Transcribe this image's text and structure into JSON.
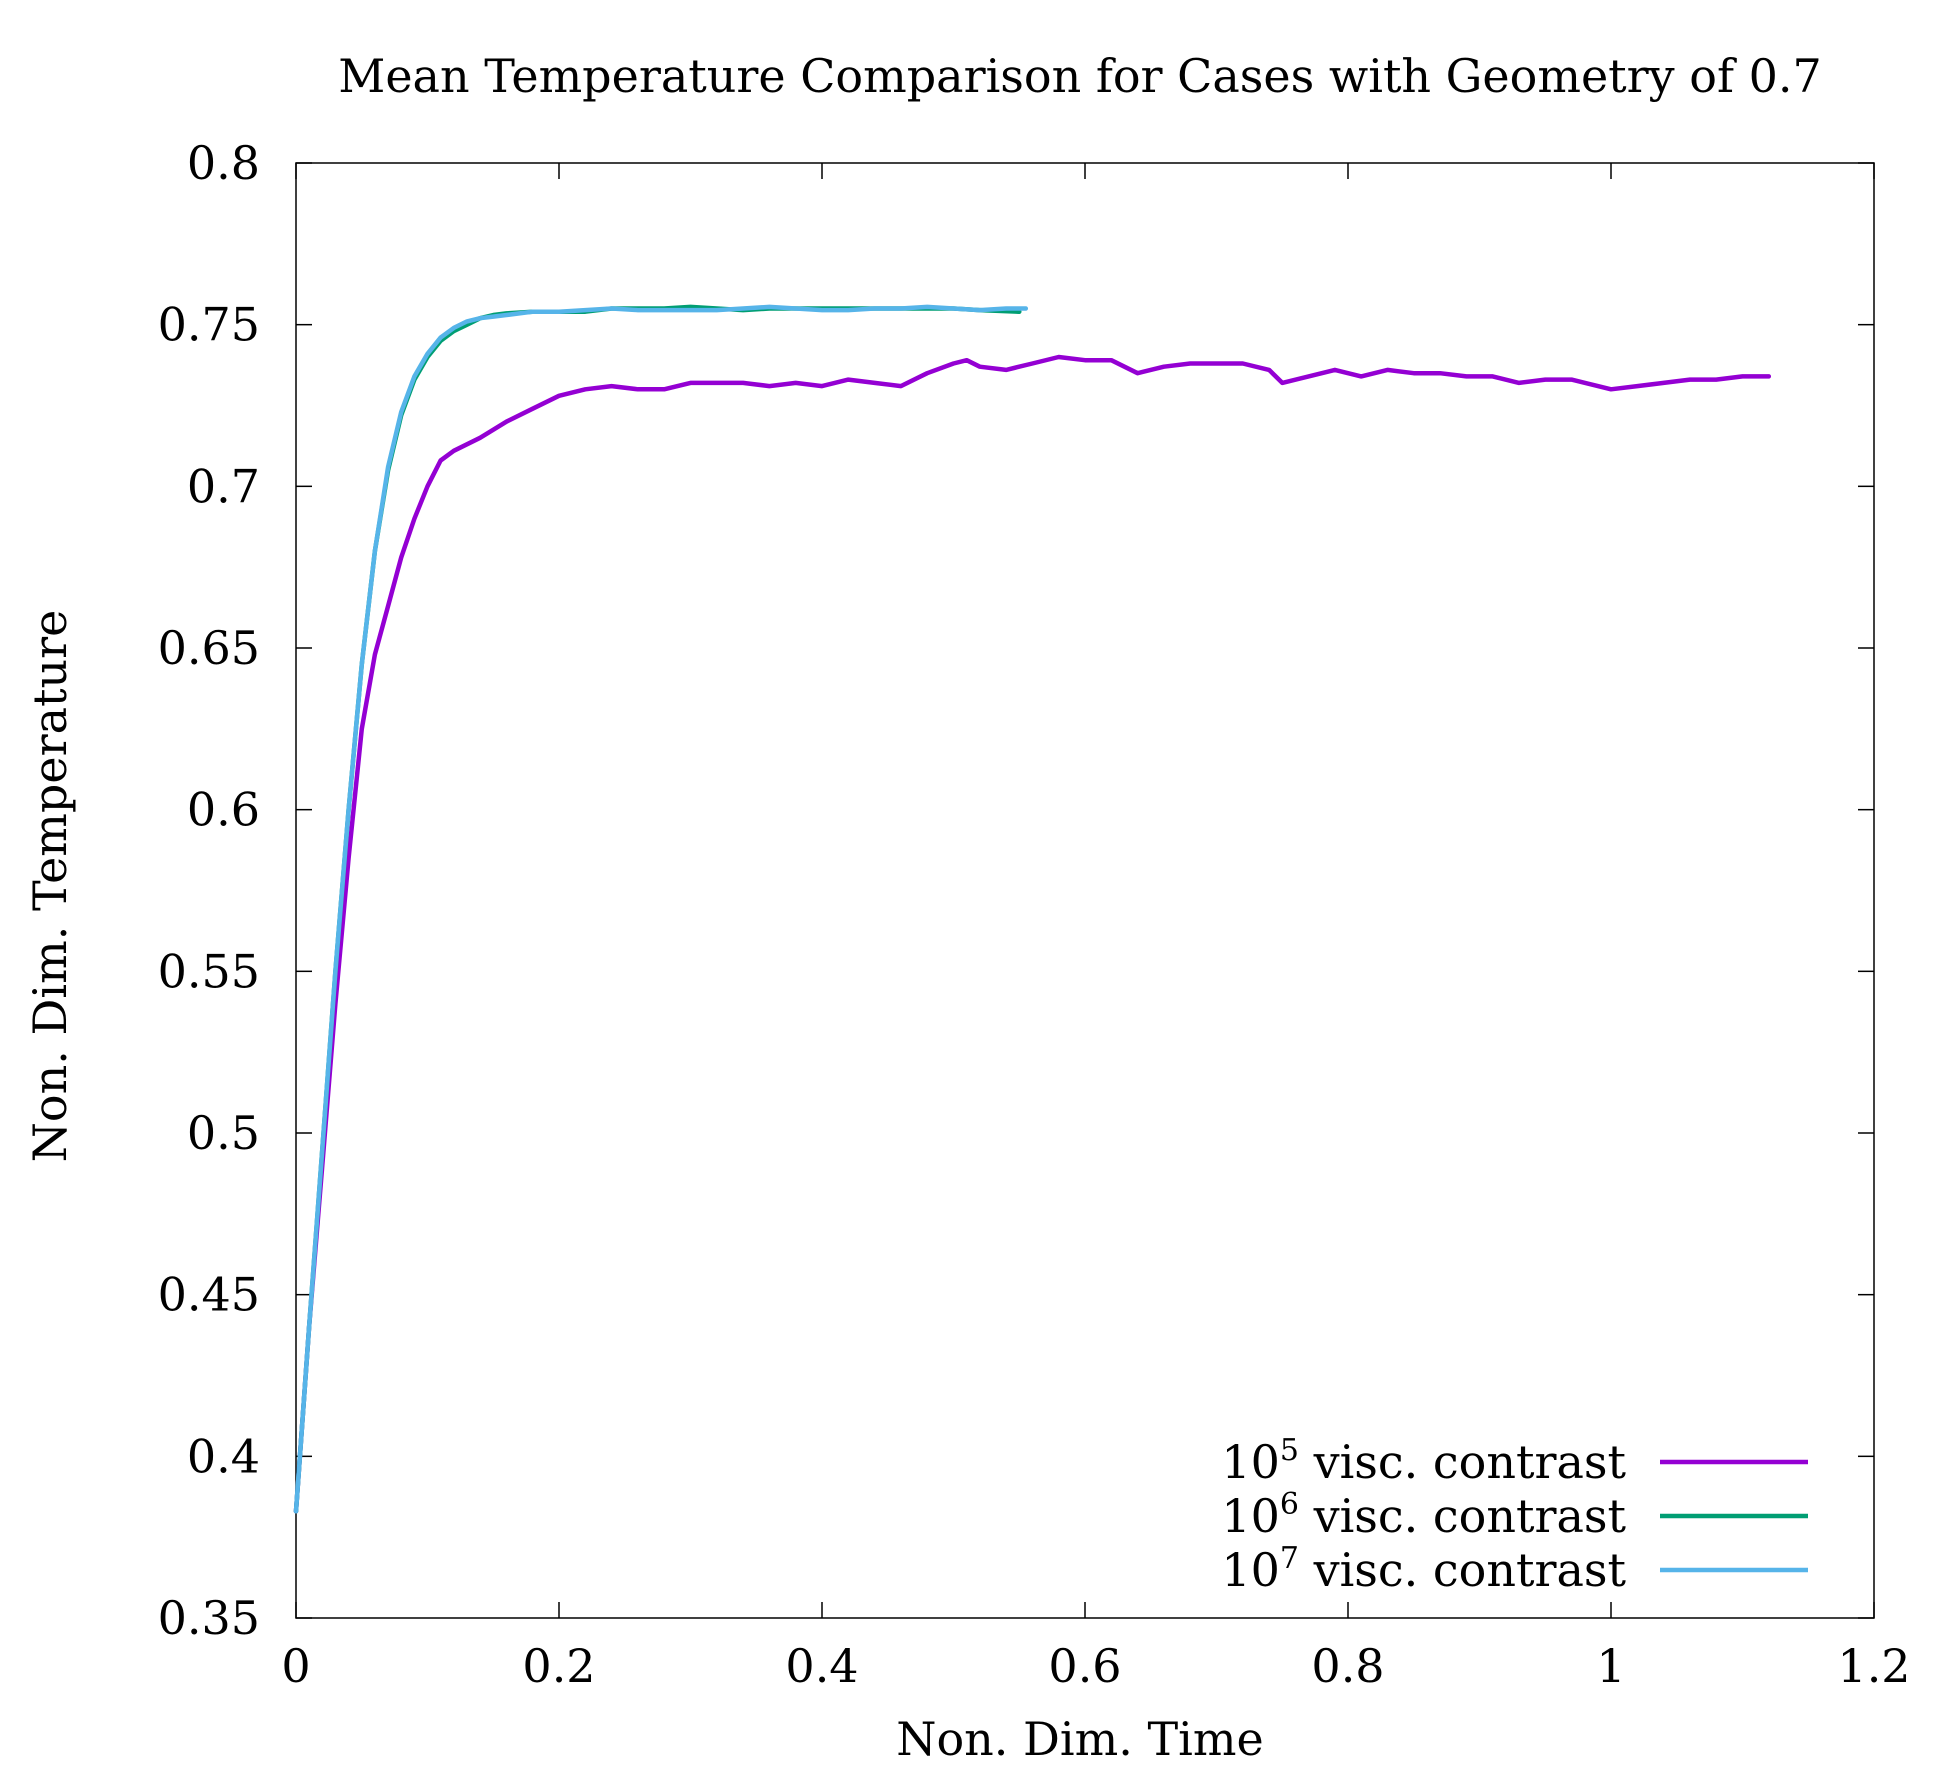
{
  "chart_data": {
    "type": "line",
    "title": "Mean Temperature Comparison for Cases with Geometry of 0.7",
    "xlabel": "Non. Dim. Time",
    "ylabel": "Non. Dim. Temperature",
    "xlim": [
      0,
      1.2
    ],
    "ylim": [
      0.35,
      0.8
    ],
    "xticks": [
      0,
      0.2,
      0.4,
      0.6,
      0.8,
      1,
      1.2
    ],
    "xtick_labels": [
      "0",
      "0.2",
      "0.4",
      "0.6",
      "0.8",
      "1",
      "1.2"
    ],
    "yticks": [
      0.35,
      0.4,
      0.45,
      0.5,
      0.55,
      0.6,
      0.65,
      0.7,
      0.75,
      0.8
    ],
    "ytick_labels": [
      "0.35",
      "0.4",
      "0.45",
      "0.5",
      "0.55",
      "0.6",
      "0.65",
      "0.7",
      "0.75",
      "0.8"
    ],
    "grid": false,
    "legend_position": "bottom-right",
    "series": [
      {
        "name": "10^5 visc. contrast",
        "legend_base": "10",
        "legend_exp": "5",
        "legend_rest": " visc. contrast",
        "color": "#9400D3",
        "x": [
          0,
          0.01,
          0.02,
          0.03,
          0.04,
          0.05,
          0.06,
          0.07,
          0.08,
          0.09,
          0.1,
          0.11,
          0.12,
          0.14,
          0.16,
          0.18,
          0.2,
          0.22,
          0.24,
          0.26,
          0.28,
          0.3,
          0.32,
          0.34,
          0.36,
          0.38,
          0.4,
          0.42,
          0.44,
          0.46,
          0.48,
          0.5,
          0.51,
          0.52,
          0.54,
          0.56,
          0.58,
          0.6,
          0.62,
          0.64,
          0.66,
          0.68,
          0.7,
          0.72,
          0.74,
          0.75,
          0.77,
          0.79,
          0.81,
          0.83,
          0.85,
          0.87,
          0.89,
          0.91,
          0.93,
          0.95,
          0.97,
          0.99,
          1.0,
          1.02,
          1.04,
          1.06,
          1.08,
          1.1,
          1.12
        ],
        "y": [
          0.383,
          0.44,
          0.49,
          0.54,
          0.585,
          0.625,
          0.648,
          0.663,
          0.678,
          0.69,
          0.7,
          0.708,
          0.711,
          0.715,
          0.72,
          0.724,
          0.728,
          0.73,
          0.731,
          0.73,
          0.73,
          0.732,
          0.732,
          0.732,
          0.731,
          0.732,
          0.731,
          0.733,
          0.732,
          0.731,
          0.735,
          0.738,
          0.739,
          0.737,
          0.736,
          0.738,
          0.74,
          0.739,
          0.739,
          0.735,
          0.737,
          0.738,
          0.738,
          0.738,
          0.736,
          0.732,
          0.734,
          0.736,
          0.734,
          0.736,
          0.735,
          0.735,
          0.734,
          0.734,
          0.732,
          0.733,
          0.733,
          0.731,
          0.73,
          0.731,
          0.732,
          0.733,
          0.733,
          0.734,
          0.734
        ]
      },
      {
        "name": "10^6 visc. contrast",
        "legend_base": "10",
        "legend_exp": "6",
        "legend_rest": " visc. contrast",
        "color": "#009E73",
        "x": [
          0,
          0.01,
          0.02,
          0.03,
          0.04,
          0.05,
          0.06,
          0.07,
          0.08,
          0.09,
          0.1,
          0.11,
          0.12,
          0.13,
          0.14,
          0.15,
          0.16,
          0.18,
          0.2,
          0.22,
          0.24,
          0.26,
          0.28,
          0.3,
          0.32,
          0.34,
          0.36,
          0.38,
          0.4,
          0.42,
          0.44,
          0.46,
          0.48,
          0.5,
          0.52,
          0.55
        ],
        "y": [
          0.383,
          0.44,
          0.495,
          0.55,
          0.6,
          0.645,
          0.68,
          0.705,
          0.722,
          0.733,
          0.74,
          0.745,
          0.748,
          0.75,
          0.752,
          0.753,
          0.7535,
          0.754,
          0.754,
          0.754,
          0.755,
          0.755,
          0.755,
          0.7555,
          0.755,
          0.7545,
          0.755,
          0.755,
          0.755,
          0.755,
          0.755,
          0.755,
          0.755,
          0.755,
          0.7545,
          0.754
        ]
      },
      {
        "name": "10^7 visc. contrast",
        "legend_base": "10",
        "legend_exp": "7",
        "legend_rest": " visc. contrast",
        "color": "#56B4E9",
        "x": [
          0,
          0.01,
          0.02,
          0.03,
          0.04,
          0.05,
          0.06,
          0.07,
          0.08,
          0.09,
          0.1,
          0.11,
          0.12,
          0.13,
          0.14,
          0.15,
          0.16,
          0.18,
          0.2,
          0.22,
          0.24,
          0.26,
          0.28,
          0.3,
          0.32,
          0.34,
          0.36,
          0.38,
          0.4,
          0.42,
          0.44,
          0.46,
          0.48,
          0.5,
          0.52,
          0.54,
          0.555
        ],
        "y": [
          0.383,
          0.44,
          0.495,
          0.55,
          0.6,
          0.645,
          0.68,
          0.706,
          0.723,
          0.734,
          0.741,
          0.746,
          0.749,
          0.751,
          0.752,
          0.7525,
          0.753,
          0.754,
          0.754,
          0.7545,
          0.755,
          0.7545,
          0.7545,
          0.7545,
          0.7545,
          0.755,
          0.7555,
          0.755,
          0.7545,
          0.7545,
          0.755,
          0.755,
          0.7555,
          0.755,
          0.7545,
          0.755,
          0.755
        ]
      }
    ]
  }
}
